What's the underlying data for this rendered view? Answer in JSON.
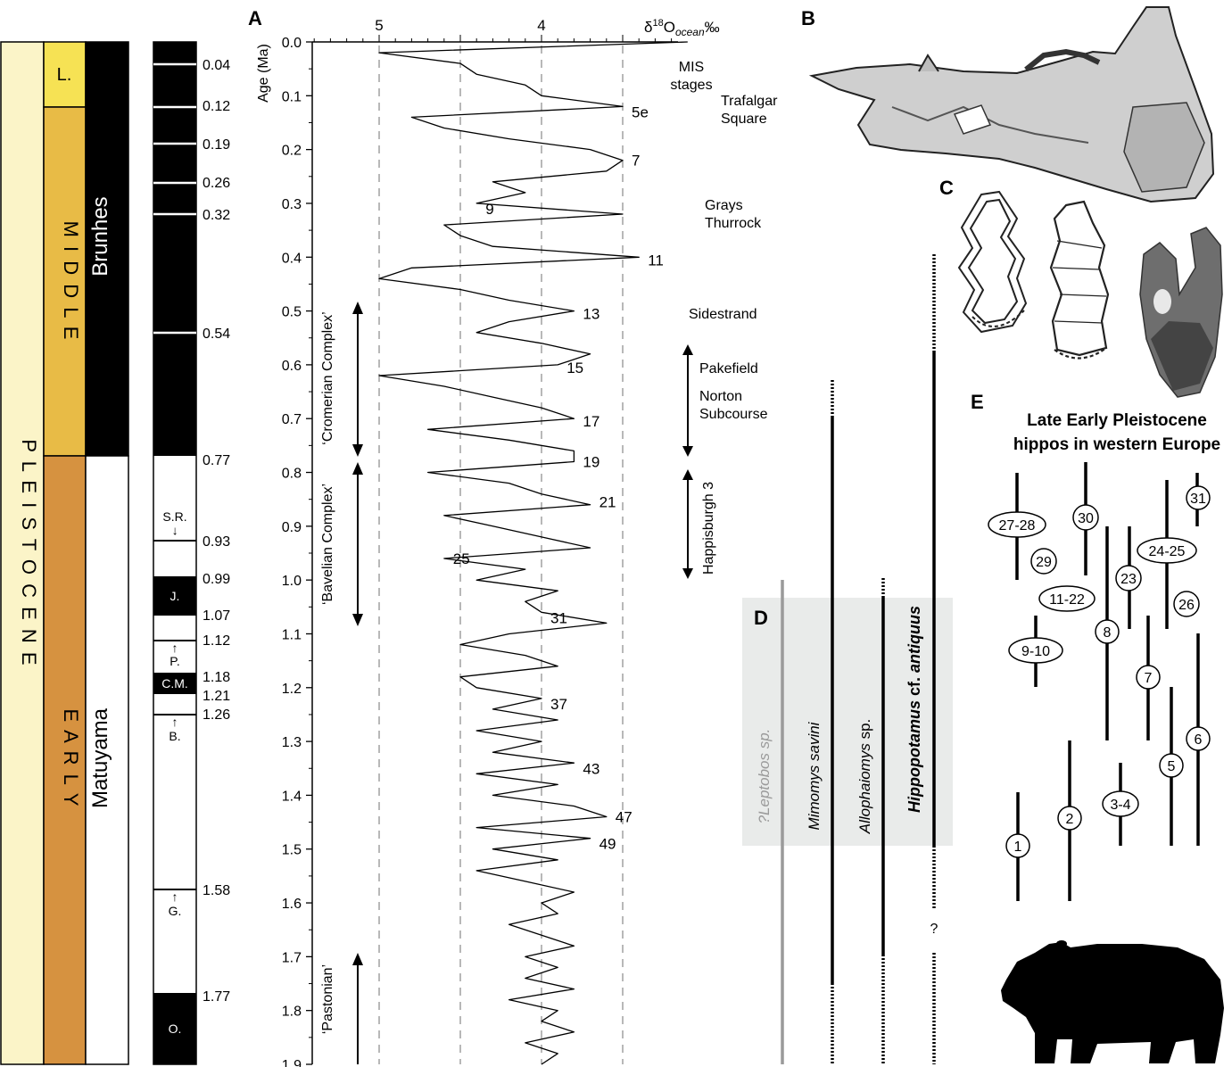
{
  "panels": {
    "a": "A",
    "b": "B",
    "c": "C",
    "d": "D",
    "e": "E"
  },
  "epochs": {
    "pleistocene": "P L E I S T O C E N E",
    "late": "L.",
    "middle": "M I D D L E",
    "early": "E A R L Y"
  },
  "chrons": {
    "brunhes": "Brunhes",
    "matuyama": "Matuyama"
  },
  "colors": {
    "cream": "#fbf4c8",
    "yellow": "#f6e254",
    "gold": "#e8bb46",
    "orange": "#d69240",
    "dashed": "#888888",
    "grey_shade": "#e9ebea",
    "leptobos": "#9a9a9a"
  },
  "polarity": {
    "ages": [
      "0.04",
      "0.12",
      "0.19",
      "0.26",
      "0.32",
      "0.54",
      "0.77",
      "0.93",
      "0.99",
      "1.07",
      "1.12",
      "1.18",
      "1.21",
      "1.26",
      "1.58",
      "1.77"
    ],
    "events": [
      "S.R.",
      "J.",
      "P.",
      "C.M.",
      "B.",
      "G.",
      "O."
    ],
    "arrow": "↑"
  },
  "chart_data": {
    "type": "line",
    "xlabel_main": "δ",
    "xlabel_sup": "18",
    "xlabel_O": "O",
    "xlabel_sub": "ocean",
    "xlabel_unit": "‰",
    "x_ticks": [
      5,
      4
    ],
    "x_reversed": true,
    "ylabel": "Age (Ma)",
    "y_ticks": [
      "0.0",
      "0.1",
      "0.2",
      "0.3",
      "0.4",
      "0.5",
      "0.6",
      "0.7",
      "0.8",
      "0.9",
      "1.0",
      "1.1",
      "1.2",
      "1.3",
      "1.4",
      "1.5",
      "1.6",
      "1.7",
      "1.8",
      "1.9"
    ],
    "ylim": [
      0,
      1.9
    ],
    "mis_header": [
      "MIS",
      "stages"
    ],
    "series": [
      {
        "age": [
          0.0,
          0.02,
          0.04,
          0.06,
          0.08,
          0.1,
          0.12,
          0.14,
          0.16,
          0.18,
          0.2,
          0.22,
          0.24,
          0.26,
          0.28,
          0.3,
          0.32,
          0.34,
          0.36,
          0.38,
          0.4,
          0.42,
          0.44,
          0.46,
          0.48,
          0.5,
          0.52,
          0.54,
          0.56,
          0.58,
          0.6,
          0.62,
          0.64,
          0.66,
          0.68,
          0.7,
          0.72,
          0.74,
          0.76,
          0.78,
          0.8,
          0.82,
          0.84,
          0.86,
          0.88,
          0.9,
          0.92,
          0.94,
          0.96,
          0.98,
          1.0,
          1.02,
          1.04,
          1.06,
          1.08,
          1.1,
          1.12,
          1.14,
          1.16,
          1.18,
          1.2,
          1.22,
          1.24,
          1.26,
          1.28,
          1.3,
          1.32,
          1.34,
          1.36,
          1.38,
          1.4,
          1.42,
          1.44,
          1.46,
          1.48,
          1.5,
          1.52,
          1.54,
          1.56,
          1.58,
          1.6,
          1.62,
          1.64,
          1.66,
          1.68,
          1.7,
          1.72,
          1.74,
          1.76,
          1.78,
          1.8,
          1.82,
          1.84,
          1.86,
          1.88,
          1.9
        ],
        "d18o": [
          3.1,
          5.0,
          4.5,
          4.4,
          4.1,
          4.0,
          3.5,
          4.8,
          4.6,
          4.2,
          3.7,
          3.5,
          3.6,
          4.3,
          4.1,
          4.4,
          3.5,
          4.6,
          4.5,
          4.3,
          3.4,
          4.8,
          5.0,
          4.5,
          4.2,
          3.8,
          4.2,
          4.4,
          4.0,
          3.7,
          3.9,
          5.0,
          4.6,
          4.3,
          4.0,
          3.8,
          4.7,
          4.2,
          3.8,
          3.8,
          4.7,
          4.2,
          4.0,
          3.7,
          4.6,
          4.3,
          4.0,
          3.7,
          4.6,
          4.1,
          4.4,
          3.9,
          4.1,
          4.0,
          3.6,
          4.2,
          4.5,
          4.1,
          3.9,
          4.5,
          4.4,
          4.0,
          4.3,
          3.9,
          4.4,
          4.0,
          4.3,
          3.8,
          4.4,
          3.9,
          4.3,
          3.8,
          3.6,
          4.4,
          3.7,
          4.3,
          3.9,
          4.4,
          4.1,
          3.8,
          4.0,
          3.9,
          4.2,
          4.0,
          3.8,
          4.1,
          3.9,
          4.1,
          3.8,
          4.2,
          3.9,
          4.0,
          3.8,
          4.1,
          3.9,
          4.0
        ]
      }
    ],
    "mis_labels": [
      {
        "label": "5e",
        "age": 0.13
      },
      {
        "label": "7",
        "age": 0.22
      },
      {
        "label": "9",
        "age": 0.31
      },
      {
        "label": "11",
        "age": 0.405
      },
      {
        "label": "13",
        "age": 0.505
      },
      {
        "label": "15",
        "age": 0.605
      },
      {
        "label": "17",
        "age": 0.705
      },
      {
        "label": "19",
        "age": 0.78
      },
      {
        "label": "21",
        "age": 0.855
      },
      {
        "label": "25",
        "age": 0.96
      },
      {
        "label": "31",
        "age": 1.07
      },
      {
        "label": "37",
        "age": 1.23
      },
      {
        "label": "43",
        "age": 1.35
      },
      {
        "label": "47",
        "age": 1.44
      },
      {
        "label": "49",
        "age": 1.49
      }
    ],
    "sites": [
      {
        "lines": [
          "Trafalgar",
          "Square"
        ]
      },
      {
        "lines": [
          "Grays",
          "Thurrock"
        ]
      },
      {
        "lines": [
          "Sidestrand"
        ]
      },
      {
        "lines": [
          "Pakefield"
        ]
      },
      {
        "lines": [
          "Norton",
          "Subcourse"
        ]
      },
      {
        "lines": [
          "Happisburgh 3"
        ]
      }
    ],
    "complexes": [
      "‘Cromerian Complex’",
      "‘Bavelian Complex’",
      "‘Pastonian’"
    ]
  },
  "taxa": {
    "leptobos": "?Leptobos sp.",
    "mimomys_genus": "Mimomys",
    "mimomys_species": "savini",
    "allophaiomys_genus": "Allophaiomys",
    "allophaiomys_sp": "sp.",
    "hippo_genus": "Hippopotamus",
    "hippo_cf": "cf.",
    "hippo_species": "antiquus",
    "question": "?"
  },
  "panel_e": {
    "title_line1": "Late Early Pleistocene",
    "title_line2": "hippos in western Europe",
    "sites": [
      "27-28",
      "30",
      "31",
      "29",
      "24-25",
      "23",
      "11-22",
      "26",
      "8",
      "9-10",
      "7",
      "6",
      "5",
      "3-4",
      "2",
      "1"
    ]
  }
}
